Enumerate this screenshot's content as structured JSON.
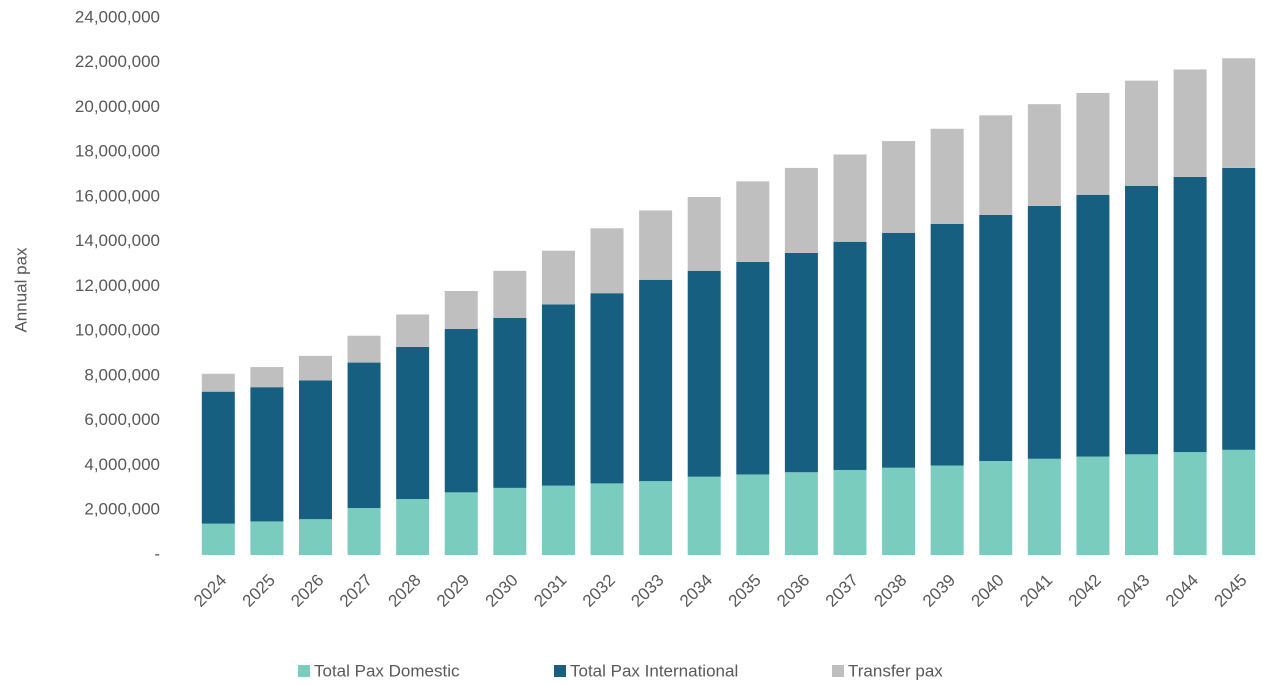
{
  "chart_data": {
    "type": "bar",
    "stacked": true,
    "y_label": "Annual pax",
    "categories": [
      "2024",
      "2025",
      "2026",
      "2027",
      "2028",
      "2029",
      "2030",
      "2031",
      "2032",
      "2033",
      "2034",
      "2035",
      "2036",
      "2037",
      "2038",
      "2039",
      "2040",
      "2041",
      "2042",
      "2043",
      "2044",
      "2045"
    ],
    "series": [
      {
        "name": "Total Pax Domestic",
        "color": "#7accbf",
        "values": [
          1400000,
          1500000,
          1600000,
          2100000,
          2500000,
          2800000,
          3000000,
          3100000,
          3200000,
          3300000,
          3500000,
          3600000,
          3700000,
          3800000,
          3900000,
          4000000,
          4200000,
          4300000,
          4400000,
          4500000,
          4600000,
          4700000
        ]
      },
      {
        "name": "Total Pax International",
        "color": "#165f80",
        "values": [
          5900000,
          6000000,
          6200000,
          6500000,
          6800000,
          7300000,
          7600000,
          8100000,
          8500000,
          9000000,
          9200000,
          9500000,
          9800000,
          10200000,
          10500000,
          10800000,
          11000000,
          11300000,
          11700000,
          12000000,
          12300000,
          12600000
        ]
      },
      {
        "name": "Transfer pax",
        "color": "#bfbfbf",
        "values": [
          800000,
          900000,
          1100000,
          1200000,
          1450000,
          1700000,
          2100000,
          2400000,
          2900000,
          3100000,
          3300000,
          3600000,
          3800000,
          3900000,
          4100000,
          4250000,
          4450000,
          4550000,
          4550000,
          4700000,
          4800000,
          4900000
        ]
      }
    ],
    "ylim": [
      0,
      24000000
    ],
    "yticks": [
      {
        "value": 0,
        "label": "-"
      },
      {
        "value": 2000000,
        "label": "2,000,000"
      },
      {
        "value": 4000000,
        "label": "4,000,000"
      },
      {
        "value": 6000000,
        "label": "6,000,000"
      },
      {
        "value": 8000000,
        "label": "8,000,000"
      },
      {
        "value": 10000000,
        "label": "10,000,000"
      },
      {
        "value": 12000000,
        "label": "12,000,000"
      },
      {
        "value": 14000000,
        "label": "14,000,000"
      },
      {
        "value": 16000000,
        "label": "16,000,000"
      },
      {
        "value": 18000000,
        "label": "18,000,000"
      },
      {
        "value": 20000000,
        "label": "20,000,000"
      },
      {
        "value": 22000000,
        "label": "22,000,000"
      },
      {
        "value": 24000000,
        "label": "24,000,000"
      }
    ],
    "grid": false,
    "legend": "bottom"
  }
}
